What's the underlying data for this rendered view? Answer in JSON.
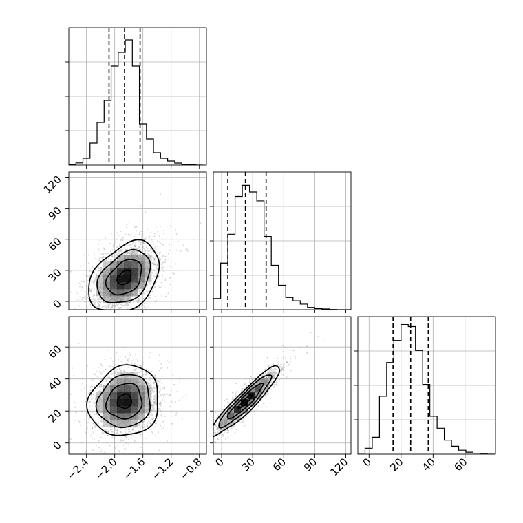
{
  "chart_data": {
    "type": "corner",
    "grid": true,
    "hist_density_ticks": false,
    "params": [
      {
        "range": [
          -2.65,
          -0.7
        ],
        "ticks": [
          -2.4,
          -2.0,
          -1.6,
          -1.2,
          -0.8
        ],
        "tick_labels": [
          "−2.4",
          "−2.0",
          "−1.6",
          "−1.2",
          "−0.8"
        ],
        "quantiles": [
          -2.08,
          -1.86,
          -1.64
        ],
        "hist": {
          "edges": [
            -2.65,
            -2.55,
            -2.45,
            -2.35,
            -2.25,
            -2.15,
            -2.05,
            -1.95,
            -1.85,
            -1.75,
            -1.65,
            -1.55,
            -1.45,
            -1.35,
            -1.25,
            -1.15,
            -1.05,
            -0.95,
            -0.85,
            -0.75
          ],
          "counts": [
            0.5,
            1.6,
            5.0,
            16.0,
            31.0,
            47.0,
            72.0,
            82.0,
            91.0,
            72.0,
            30.0,
            19.0,
            9.0,
            5.0,
            3.0,
            1.5,
            0.5,
            0.2,
            0.0
          ],
          "ymax": 100
        }
      },
      {
        "range": [
          -8,
          125
        ],
        "ticks": [
          0,
          30,
          60,
          90,
          120
        ],
        "tick_labels": [
          "0",
          "30",
          "60",
          "90",
          "120"
        ],
        "quantiles": [
          6,
          23,
          43
        ],
        "hist": {
          "edges": [
            -8,
            -1,
            6,
            13,
            20,
            27,
            34,
            41,
            48,
            55,
            62,
            69,
            76,
            83,
            90,
            97,
            104,
            111,
            118,
            125
          ],
          "counts": [
            5.0,
            21.0,
            34.0,
            51.0,
            56.0,
            53.0,
            49.0,
            33.0,
            20.0,
            11.0,
            5.5,
            4.0,
            2.5,
            1.0,
            0.5,
            0.3,
            0.1,
            0.0,
            0.0
          ],
          "ymax": 62
        }
      },
      {
        "range": [
          -7,
          79
        ],
        "ticks": [
          0,
          20,
          40,
          60
        ],
        "tick_labels": [
          "0",
          "20",
          "40",
          "60"
        ],
        "quantiles": [
          15,
          26,
          37
        ],
        "hist": {
          "edges": [
            -7,
            -2.5,
            2,
            6.5,
            11,
            15.5,
            20,
            24.5,
            29,
            33.5,
            38,
            42.5,
            47,
            51.5,
            56,
            60.5,
            65,
            69.5,
            74,
            78.5
          ],
          "counts": [
            0.5,
            3.0,
            8.5,
            29.0,
            46.0,
            57.0,
            65.0,
            64.0,
            52.0,
            35.0,
            19.0,
            13.0,
            7.0,
            4.0,
            2.0,
            1.0,
            0.5,
            0.1,
            0.0
          ],
          "ymax": 69
        }
      }
    ],
    "pairs": [
      {
        "x_param": 0,
        "y_param": 1,
        "means": [
          -1.86,
          23
        ],
        "sds": [
          0.25,
          17
        ],
        "corr": 0.35,
        "scatter_n": 2200,
        "seed": 11
      },
      {
        "x_param": 0,
        "y_param": 2,
        "means": [
          -1.86,
          26
        ],
        "sds": [
          0.25,
          11
        ],
        "corr": 0.1,
        "scatter_n": 2000,
        "seed": 23
      },
      {
        "x_param": 1,
        "y_param": 2,
        "means": [
          23,
          26
        ],
        "sds": [
          17,
          11
        ],
        "corr": 0.93,
        "scatter_n": 1800,
        "seed": 37
      }
    ],
    "contour_levels_sigma": [
      0.5,
      1.0,
      1.5,
      2.0
    ],
    "colors": {
      "line": "#000000",
      "scatter": "#8c8c8c",
      "grid": "#b0b0b0",
      "density_dark": "#000000",
      "density_light": "#ffffff"
    }
  }
}
